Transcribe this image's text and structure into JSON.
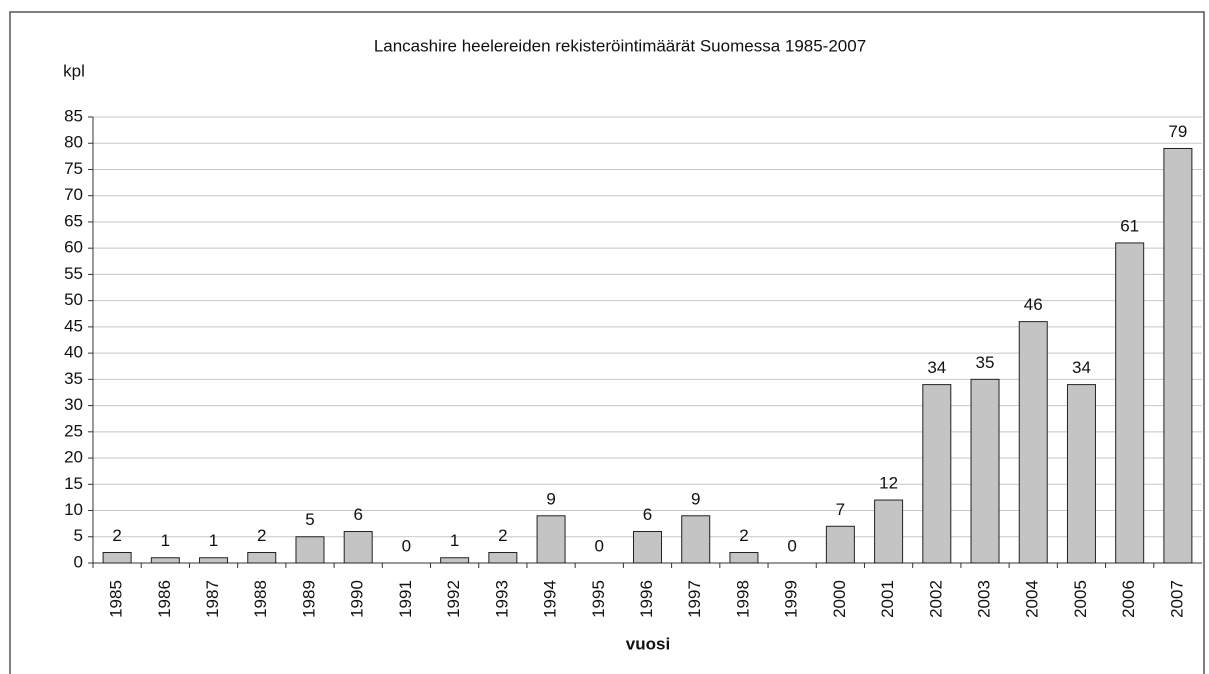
{
  "chart_data": {
    "type": "bar",
    "title": "Lancashire heelereiden rekisteröintimäärät Suomessa 1985-2007",
    "y_label": "kpl",
    "x_label": "vuosi",
    "categories": [
      "1985",
      "1986",
      "1987",
      "1988",
      "1989",
      "1990",
      "1991",
      "1992",
      "1993",
      "1994",
      "1995",
      "1996",
      "1997",
      "1998",
      "1999",
      "2000",
      "2001",
      "2002",
      "2003",
      "2004",
      "2005",
      "2006",
      "2007"
    ],
    "values": [
      2,
      1,
      1,
      2,
      5,
      6,
      0,
      1,
      2,
      9,
      0,
      6,
      9,
      2,
      0,
      7,
      12,
      34,
      35,
      46,
      34,
      61,
      79
    ],
    "color": "#c4c4c4",
    "ylim": [
      0,
      85
    ],
    "yticks": [
      0,
      5,
      10,
      15,
      20,
      25,
      30,
      35,
      40,
      45,
      50,
      55,
      60,
      65,
      70,
      75,
      80,
      85
    ],
    "grid": true
  }
}
